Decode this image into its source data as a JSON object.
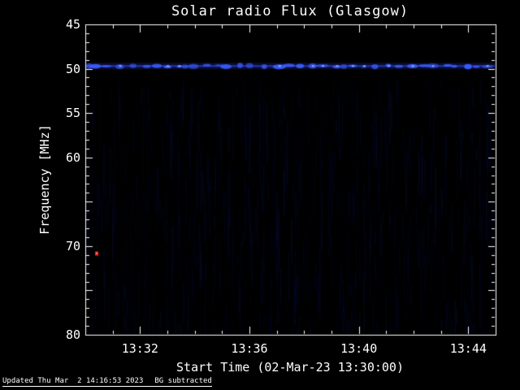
{
  "footer": {
    "updated": "Updated Thu Mar  2 14:16:53 2023",
    "bg_note": "BG subtracted"
  },
  "chart_data": {
    "type": "heatmap",
    "title": "Solar radio Flux (Glasgow)",
    "xlabel": "Start Time (02-Mar-23 13:30:00)",
    "ylabel": "Frequency [MHz]",
    "x_start": "13:30:00",
    "x_end": "13:45:00",
    "x_ticks": [
      "13:32",
      "13:36",
      "13:40",
      "13:44"
    ],
    "x_major_tick_every_min": 4,
    "x_minor_step_sec": 60,
    "ylim": [
      45,
      80
    ],
    "y_axis_inverted": true,
    "y_tick_labels": [
      45,
      50,
      55,
      60,
      70,
      80
    ],
    "y_major_step": 5,
    "y_minor_step": 1,
    "grid": false,
    "legend": false,
    "background_color": "#000000",
    "frame_color": "#ffffff",
    "features": {
      "rfi_band": {
        "freq_mhz": 49.7,
        "color": "#4060ff",
        "description": "persistent horizontal interference band with quasi-periodic bright blue blobs spanning full time range"
      },
      "burst_point": {
        "time": "13:30:25",
        "freq_mhz": 70.8,
        "color": "#ff2020"
      },
      "noise": {
        "color": "#121c6e",
        "description": "faint vertical striping of weak blue emission, mostly below 52 MHz down to 80 MHz"
      }
    }
  }
}
